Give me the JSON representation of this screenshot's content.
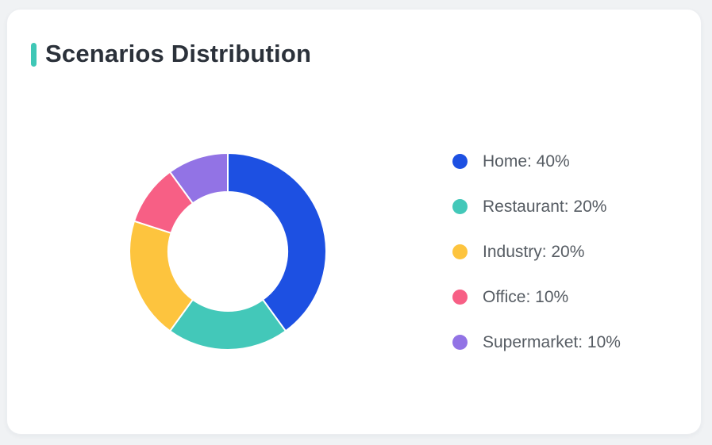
{
  "card": {
    "title": "Scenarios Distribution"
  },
  "theme": {
    "page_background": "#f0f2f4",
    "card_background": "#ffffff",
    "card_border": "#eceef1",
    "accent_bar_color": "#3fc7b6",
    "title_color": "#2b313a",
    "legend_text_color": "#565c63",
    "slice_gap_color": "#ffffff"
  },
  "chart_data": {
    "type": "pie",
    "title": "Scenarios Distribution",
    "donut": true,
    "inner_radius_ratio": 0.605,
    "start_angle_deg": 0,
    "direction": "clockwise",
    "legend_position": "right",
    "unit": "%",
    "categories": [
      "Home",
      "Restaurant",
      "Industry",
      "Office",
      "Supermarket"
    ],
    "values": [
      40,
      20,
      20,
      10,
      10
    ],
    "colors": [
      "#1d50e2",
      "#43c8b9",
      "#fdc43e",
      "#f75f85",
      "#9273e5"
    ]
  },
  "legend": {
    "items": [
      {
        "label": "Home: 40%",
        "color": "#1d50e2"
      },
      {
        "label": "Restaurant: 20%",
        "color": "#43c8b9"
      },
      {
        "label": "Industry: 20%",
        "color": "#fdc43e"
      },
      {
        "label": "Office: 10%",
        "color": "#f75f85"
      },
      {
        "label": "Supermarket: 10%",
        "color": "#9273e5"
      }
    ]
  }
}
